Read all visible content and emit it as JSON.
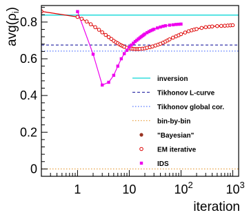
{
  "chart_data": {
    "type": "line",
    "xlabel": "iteration",
    "ylabel": "avg(ρ",
    "ylabel_sub": "i",
    "ylabel_close": ")",
    "xscale": "log",
    "xlim": [
      0.2,
      1300
    ],
    "ylim": [
      -0.04,
      0.89
    ],
    "x_ticks": [
      {
        "value": 1,
        "label": "1"
      },
      {
        "value": 10,
        "label": "10"
      },
      {
        "value": 100,
        "base": "10",
        "exp": "2"
      },
      {
        "value": 1000,
        "base": "10",
        "exp": "3"
      }
    ],
    "y_ticks": [
      {
        "value": 0,
        "label": "0"
      },
      {
        "value": 0.2,
        "label": "0.2"
      },
      {
        "value": 0.4,
        "label": "0.4"
      },
      {
        "value": 0.6,
        "label": "0.6"
      },
      {
        "value": 0.8,
        "label": "0.8"
      }
    ],
    "grid": false,
    "legend_position": "bottom-right",
    "reference_lines": [
      {
        "name": "inversion",
        "y": 0.838,
        "color": "#33dddd",
        "style": "solid",
        "width": 1.6
      },
      {
        "name": "Tikhonov L-curve",
        "y": 0.675,
        "color": "#3333aa",
        "style": "dashed",
        "width": 1.2
      },
      {
        "name": "Tikhonov global cor.",
        "y": 0.642,
        "color": "#5577ff",
        "style": "dotted",
        "width": 1.2
      },
      {
        "name": "bin-by-bin",
        "y": 0.0,
        "color": "#e8a040",
        "style": "dotted",
        "width": 1.2
      }
    ],
    "series": [
      {
        "name": "\"Bayesian\"",
        "marker": "dot",
        "color": "#993322",
        "x": [
          0.2
        ],
        "y": [
          0.858
        ]
      },
      {
        "name": "EM iterative",
        "marker": "open-circle",
        "color": "#dd0000",
        "x": [
          0.2,
          1,
          1.2,
          1.5,
          1.8,
          2.2,
          2.6,
          3,
          3.5,
          4,
          4.5,
          5,
          5.5,
          6,
          6.5,
          7,
          7.5,
          8,
          9,
          10,
          11,
          12,
          13,
          14,
          15,
          16,
          18,
          20,
          22,
          25,
          28,
          32,
          36,
          40,
          45,
          50,
          55,
          60,
          70,
          80,
          90,
          100,
          120,
          140,
          160,
          180,
          200,
          250,
          300,
          350,
          400,
          500,
          600,
          700,
          800,
          900,
          1000
        ],
        "y": [
          0.858,
          0.828,
          0.818,
          0.803,
          0.788,
          0.772,
          0.758,
          0.744,
          0.73,
          0.718,
          0.708,
          0.698,
          0.69,
          0.684,
          0.678,
          0.673,
          0.669,
          0.665,
          0.66,
          0.657,
          0.655,
          0.654,
          0.653,
          0.653,
          0.653,
          0.654,
          0.655,
          0.657,
          0.66,
          0.663,
          0.667,
          0.672,
          0.677,
          0.682,
          0.688,
          0.694,
          0.7,
          0.706,
          0.715,
          0.722,
          0.728,
          0.734,
          0.743,
          0.75,
          0.755,
          0.759,
          0.762,
          0.768,
          0.772,
          0.774,
          0.776,
          0.778,
          0.779,
          0.78,
          0.781,
          0.782,
          0.783
        ]
      },
      {
        "name": "IDS",
        "marker": "square",
        "color": "#ee00ee",
        "x": [
          1,
          2,
          3,
          4,
          5,
          6,
          7,
          8,
          9,
          10,
          11,
          12,
          13,
          14,
          15,
          16,
          17,
          18,
          19,
          20,
          22,
          24,
          26,
          28,
          30,
          35,
          40,
          45,
          50,
          60,
          70,
          80,
          90,
          100
        ],
        "y": [
          0.857,
          0.625,
          0.457,
          0.472,
          0.51,
          0.56,
          0.6,
          0.628,
          0.646,
          0.663,
          0.675,
          0.685,
          0.694,
          0.701,
          0.708,
          0.714,
          0.72,
          0.725,
          0.73,
          0.735,
          0.742,
          0.748,
          0.753,
          0.757,
          0.761,
          0.768,
          0.773,
          0.777,
          0.78,
          0.783,
          0.785,
          0.787,
          0.788,
          0.789
        ]
      }
    ]
  }
}
